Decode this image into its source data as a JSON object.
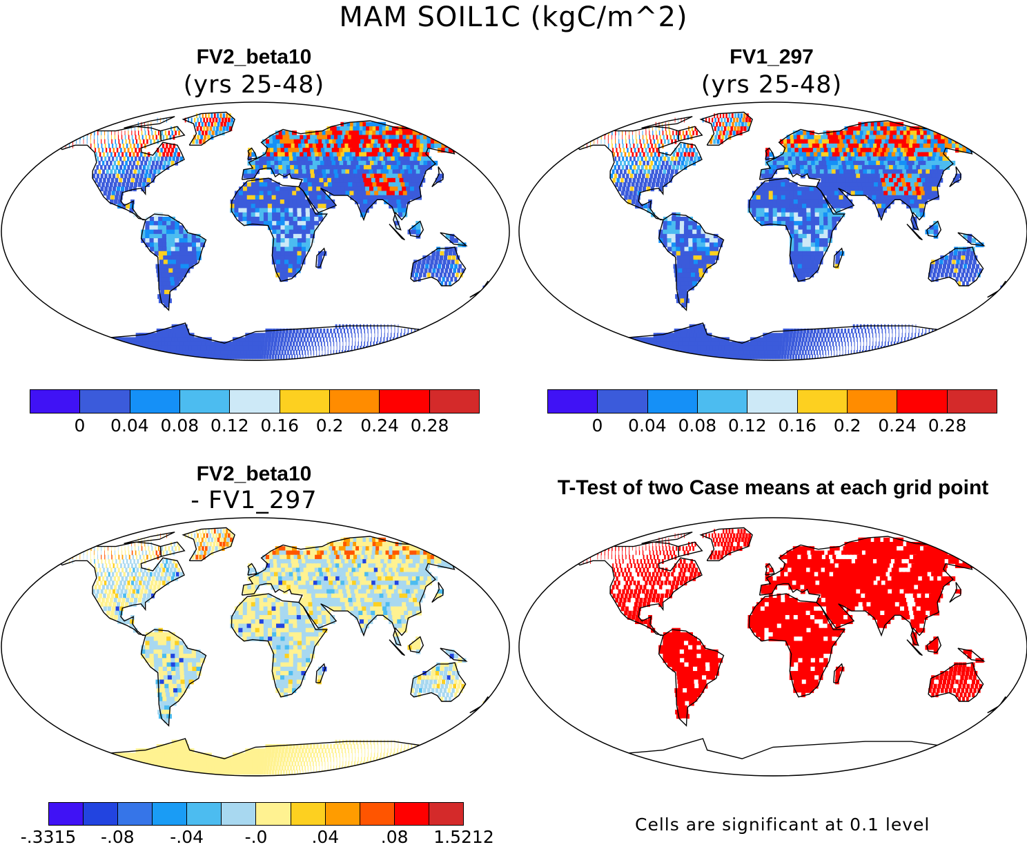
{
  "title": "MAM SOIL1C (kgC/m^2)",
  "panels": [
    {
      "id": "p1",
      "title": "FV2_beta10",
      "subtitle": "(yrs 25-48)",
      "field": "soil",
      "dominant_color": "#3b5bdb"
    },
    {
      "id": "p2",
      "title": "FV1_297",
      "subtitle": "(yrs 25-48)",
      "field": "soil",
      "dominant_color": "#3b5bdb"
    },
    {
      "id": "p3",
      "title": "FV2_beta10",
      "subtitle": "- FV1_297",
      "field": "diff",
      "dominant_color": "#fff291"
    },
    {
      "id": "p4",
      "title": "T-Test of two Case means at each grid point",
      "subtitle": "",
      "field": "ttest",
      "dominant_color": "#ff0000"
    }
  ],
  "colorbar_top": {
    "colors": [
      "#4012f5",
      "#3b5bdb",
      "#1590f7",
      "#4cbcf0",
      "#cde9f7",
      "#fdd020",
      "#ff8c00",
      "#ff0000",
      "#d42a2a"
    ],
    "labels": [
      "0",
      "0.04",
      "0.08",
      "0.12",
      "0.16",
      "0.2",
      "0.24",
      "0.28"
    ]
  },
  "colorbar_diff": {
    "colors": [
      "#4012f5",
      "#2244e0",
      "#3675e8",
      "#1a9cf5",
      "#4cbcf0",
      "#a8d8f0",
      "#fff291",
      "#fdd020",
      "#ff9c00",
      "#ff5500",
      "#ff0000",
      "#d42a2a"
    ],
    "labels": [
      "-.3315",
      "-.08",
      "-.04",
      "-.0",
      ".04",
      ".08",
      "1.5212"
    ]
  },
  "ttest_note": "Cells are significant at 0.1 level",
  "icons": {
    "map": "world-map-robinson"
  }
}
